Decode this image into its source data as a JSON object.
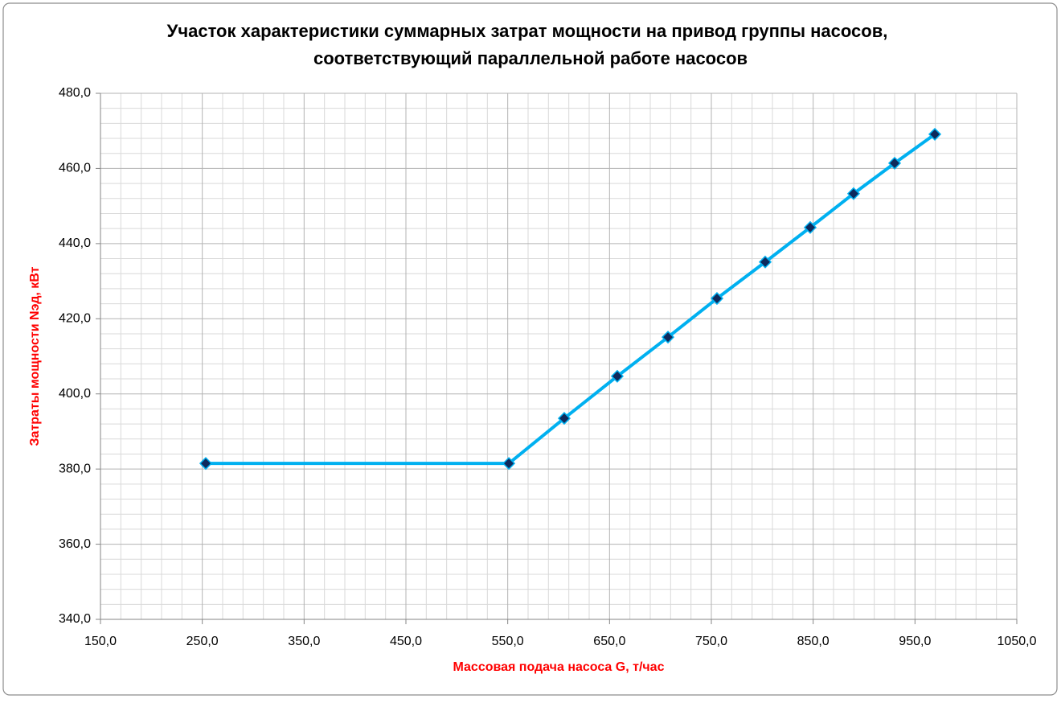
{
  "chart_data": {
    "type": "line",
    "title": [
      "Участок характеристики  суммарных затрат мощности на привод группы насосов,",
      "соответствующий параллельной работе насосов"
    ],
    "x_label": "Массовая подача насоса G, т/час",
    "y_label": "Затраты мощности Nэд, кВт",
    "x": [
      253.4,
      551.1,
      605.5,
      657.6,
      707.4,
      755.5,
      802.9,
      847.1,
      889.7,
      930.0,
      969.5
    ],
    "series": [
      {
        "color": "#00b0f0",
        "marker_color": "#0f2a5c",
        "values": [
          381.5,
          381.5,
          393.5,
          404.7,
          415.1,
          425.4,
          435.1,
          444.3,
          453.3,
          461.4,
          469.1
        ]
      }
    ],
    "xlim": [
      150,
      1050
    ],
    "xticks": [
      {
        "value": 150,
        "label": "150,0"
      },
      {
        "value": 250,
        "label": "250,0"
      },
      {
        "value": 350,
        "label": "350,0"
      },
      {
        "value": 450,
        "label": "450,0"
      },
      {
        "value": 550,
        "label": "550,0"
      },
      {
        "value": 650,
        "label": "650,0"
      },
      {
        "value": 750,
        "label": "750,0"
      },
      {
        "value": 850,
        "label": "850,0"
      },
      {
        "value": 950,
        "label": "950,0"
      },
      {
        "value": 1050,
        "label": "1050,0"
      }
    ],
    "ylim": [
      340,
      480
    ],
    "yticks": [
      {
        "value": 340,
        "label": "340,0"
      },
      {
        "value": 360,
        "label": "360,0"
      },
      {
        "value": 380,
        "label": "380,0"
      },
      {
        "value": 400,
        "label": "400,0"
      },
      {
        "value": 420,
        "label": "420,0"
      },
      {
        "value": 440,
        "label": "440,0"
      },
      {
        "value": 460,
        "label": "460,0"
      },
      {
        "value": 480,
        "label": "480,0"
      }
    ],
    "grid": true,
    "minor_grid": true
  }
}
